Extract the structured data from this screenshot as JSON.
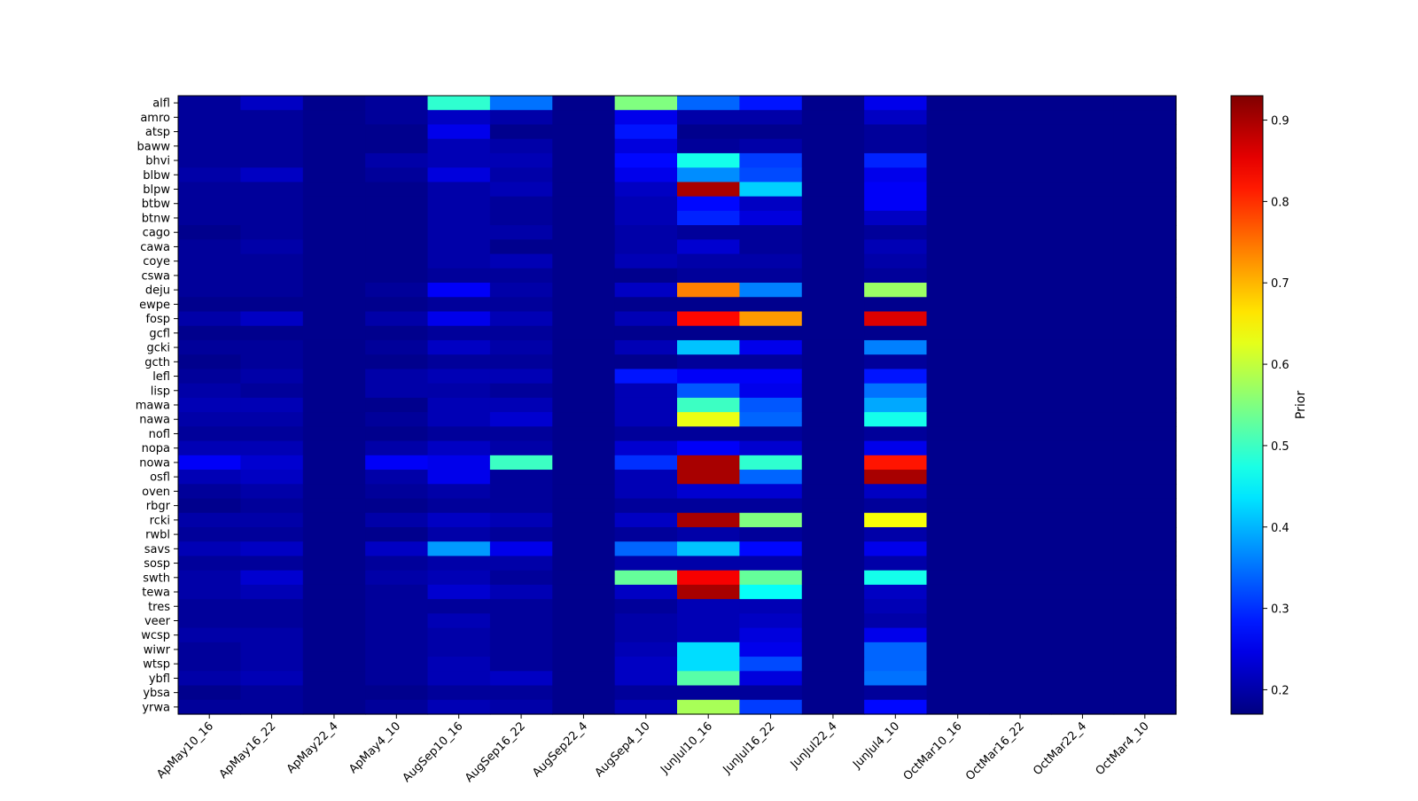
{
  "chart_data": {
    "type": "heatmap",
    "title": "",
    "xlabel": "",
    "ylabel": "",
    "colorbar_label": "Prior",
    "colormap": "jet",
    "vmin": 0.17,
    "vmax": 0.93,
    "colorbar_ticks": [
      "0.2",
      "0.3",
      "0.4",
      "0.5",
      "0.6",
      "0.7",
      "0.8",
      "0.9"
    ],
    "x_categories": [
      "ApMay10_16",
      "ApMay16_22",
      "ApMay22_4",
      "ApMay4_10",
      "AugSep10_16",
      "AugSep16_22",
      "AugSep22_4",
      "AugSep4_10",
      "JunJul10_16",
      "JunJul16_22",
      "JunJul22_4",
      "JunJul4_10",
      "OctMar10_16",
      "OctMar16_22",
      "OctMar22_4",
      "OctMar4_10"
    ],
    "y_categories": [
      "alfl",
      "amro",
      "atsp",
      "baww",
      "bhvi",
      "blbw",
      "blpw",
      "btbw",
      "btnw",
      "cago",
      "cawa",
      "coye",
      "cswa",
      "deju",
      "ewpe",
      "fosp",
      "gcfl",
      "gcki",
      "gcth",
      "lefl",
      "lisp",
      "mawa",
      "nawa",
      "nofl",
      "nopa",
      "nowa",
      "osfl",
      "oven",
      "rbgr",
      "rcki",
      "rwbl",
      "savs",
      "sosp",
      "swth",
      "tewa",
      "tres",
      "veer",
      "wcsp",
      "wiwr",
      "wtsp",
      "ybfl",
      "ybsa",
      "yrwa"
    ],
    "values": [
      [
        0.19,
        0.22,
        0.18,
        0.19,
        0.49,
        0.35,
        0.18,
        0.55,
        0.34,
        0.28,
        0.18,
        0.25,
        0.18,
        0.18,
        0.18,
        0.18
      ],
      [
        0.19,
        0.19,
        0.18,
        0.19,
        0.22,
        0.2,
        0.18,
        0.25,
        0.2,
        0.2,
        0.18,
        0.22,
        0.18,
        0.18,
        0.18,
        0.18
      ],
      [
        0.19,
        0.19,
        0.18,
        0.18,
        0.25,
        0.18,
        0.18,
        0.28,
        0.18,
        0.18,
        0.18,
        0.19,
        0.18,
        0.18,
        0.18,
        0.18
      ],
      [
        0.19,
        0.19,
        0.18,
        0.18,
        0.21,
        0.2,
        0.18,
        0.24,
        0.19,
        0.2,
        0.18,
        0.19,
        0.18,
        0.18,
        0.18,
        0.18
      ],
      [
        0.19,
        0.19,
        0.18,
        0.2,
        0.21,
        0.21,
        0.18,
        0.27,
        0.47,
        0.31,
        0.18,
        0.29,
        0.18,
        0.18,
        0.18,
        0.18
      ],
      [
        0.2,
        0.22,
        0.18,
        0.19,
        0.24,
        0.2,
        0.18,
        0.25,
        0.37,
        0.32,
        0.18,
        0.25,
        0.18,
        0.18,
        0.18,
        0.18
      ],
      [
        0.19,
        0.19,
        0.18,
        0.18,
        0.2,
        0.21,
        0.18,
        0.22,
        0.9,
        0.42,
        0.18,
        0.26,
        0.18,
        0.18,
        0.18,
        0.18
      ],
      [
        0.19,
        0.19,
        0.18,
        0.18,
        0.2,
        0.19,
        0.18,
        0.21,
        0.27,
        0.22,
        0.18,
        0.26,
        0.18,
        0.18,
        0.18,
        0.18
      ],
      [
        0.19,
        0.19,
        0.18,
        0.18,
        0.2,
        0.19,
        0.18,
        0.21,
        0.29,
        0.24,
        0.18,
        0.22,
        0.18,
        0.18,
        0.18,
        0.18
      ],
      [
        0.18,
        0.19,
        0.18,
        0.18,
        0.2,
        0.2,
        0.18,
        0.2,
        0.19,
        0.19,
        0.18,
        0.19,
        0.18,
        0.18,
        0.18,
        0.18
      ],
      [
        0.19,
        0.2,
        0.18,
        0.18,
        0.2,
        0.18,
        0.18,
        0.2,
        0.23,
        0.19,
        0.18,
        0.21,
        0.18,
        0.18,
        0.18,
        0.18
      ],
      [
        0.19,
        0.19,
        0.18,
        0.18,
        0.2,
        0.21,
        0.18,
        0.21,
        0.2,
        0.2,
        0.18,
        0.2,
        0.18,
        0.18,
        0.18,
        0.18
      ],
      [
        0.19,
        0.19,
        0.18,
        0.18,
        0.19,
        0.19,
        0.18,
        0.18,
        0.19,
        0.19,
        0.18,
        0.19,
        0.18,
        0.18,
        0.18,
        0.18
      ],
      [
        0.19,
        0.19,
        0.18,
        0.19,
        0.26,
        0.2,
        0.18,
        0.22,
        0.74,
        0.36,
        0.18,
        0.57,
        0.18,
        0.18,
        0.18,
        0.18
      ],
      [
        0.18,
        0.18,
        0.18,
        0.18,
        0.19,
        0.19,
        0.18,
        0.18,
        0.18,
        0.18,
        0.18,
        0.18,
        0.18,
        0.18,
        0.18,
        0.18
      ],
      [
        0.2,
        0.22,
        0.18,
        0.2,
        0.25,
        0.21,
        0.18,
        0.21,
        0.83,
        0.72,
        0.18,
        0.86,
        0.18,
        0.18,
        0.18,
        0.18
      ],
      [
        0.18,
        0.18,
        0.18,
        0.18,
        0.19,
        0.19,
        0.18,
        0.18,
        0.18,
        0.18,
        0.18,
        0.18,
        0.18,
        0.18,
        0.18,
        0.18
      ],
      [
        0.19,
        0.19,
        0.18,
        0.19,
        0.22,
        0.2,
        0.18,
        0.21,
        0.41,
        0.25,
        0.18,
        0.36,
        0.18,
        0.18,
        0.18,
        0.18
      ],
      [
        0.18,
        0.19,
        0.18,
        0.18,
        0.19,
        0.19,
        0.18,
        0.18,
        0.19,
        0.19,
        0.18,
        0.19,
        0.18,
        0.18,
        0.18,
        0.18
      ],
      [
        0.19,
        0.2,
        0.18,
        0.2,
        0.21,
        0.21,
        0.18,
        0.28,
        0.26,
        0.26,
        0.18,
        0.28,
        0.18,
        0.18,
        0.18,
        0.18
      ],
      [
        0.2,
        0.19,
        0.18,
        0.2,
        0.2,
        0.19,
        0.18,
        0.21,
        0.33,
        0.25,
        0.18,
        0.35,
        0.18,
        0.18,
        0.18,
        0.18
      ],
      [
        0.21,
        0.21,
        0.18,
        0.18,
        0.21,
        0.21,
        0.18,
        0.21,
        0.5,
        0.33,
        0.18,
        0.39,
        0.18,
        0.18,
        0.18,
        0.18
      ],
      [
        0.2,
        0.2,
        0.18,
        0.19,
        0.21,
        0.23,
        0.18,
        0.21,
        0.63,
        0.34,
        0.18,
        0.47,
        0.18,
        0.18,
        0.18,
        0.18
      ],
      [
        0.19,
        0.19,
        0.18,
        0.18,
        0.19,
        0.19,
        0.18,
        0.19,
        0.19,
        0.19,
        0.18,
        0.19,
        0.18,
        0.18,
        0.18,
        0.18
      ],
      [
        0.21,
        0.21,
        0.18,
        0.2,
        0.22,
        0.2,
        0.18,
        0.23,
        0.26,
        0.23,
        0.18,
        0.25,
        0.18,
        0.18,
        0.18,
        0.18
      ],
      [
        0.26,
        0.23,
        0.18,
        0.26,
        0.25,
        0.5,
        0.18,
        0.3,
        0.9,
        0.49,
        0.18,
        0.82,
        0.18,
        0.18,
        0.18,
        0.18
      ],
      [
        0.21,
        0.22,
        0.18,
        0.2,
        0.25,
        0.19,
        0.18,
        0.21,
        0.9,
        0.34,
        0.18,
        0.9,
        0.18,
        0.18,
        0.18,
        0.18
      ],
      [
        0.19,
        0.2,
        0.18,
        0.19,
        0.2,
        0.19,
        0.18,
        0.21,
        0.23,
        0.23,
        0.18,
        0.22,
        0.18,
        0.18,
        0.18,
        0.18
      ],
      [
        0.18,
        0.19,
        0.18,
        0.18,
        0.19,
        0.19,
        0.18,
        0.19,
        0.19,
        0.19,
        0.18,
        0.19,
        0.18,
        0.18,
        0.18,
        0.18
      ],
      [
        0.2,
        0.2,
        0.18,
        0.2,
        0.22,
        0.21,
        0.18,
        0.22,
        0.9,
        0.55,
        0.18,
        0.64,
        0.18,
        0.18,
        0.18,
        0.18
      ],
      [
        0.19,
        0.19,
        0.18,
        0.18,
        0.2,
        0.19,
        0.18,
        0.19,
        0.2,
        0.19,
        0.18,
        0.2,
        0.18,
        0.18,
        0.18,
        0.18
      ],
      [
        0.21,
        0.22,
        0.18,
        0.22,
        0.38,
        0.25,
        0.18,
        0.34,
        0.41,
        0.27,
        0.18,
        0.25,
        0.18,
        0.18,
        0.18,
        0.18
      ],
      [
        0.19,
        0.19,
        0.18,
        0.19,
        0.2,
        0.2,
        0.18,
        0.2,
        0.2,
        0.2,
        0.18,
        0.2,
        0.18,
        0.18,
        0.18,
        0.18
      ],
      [
        0.2,
        0.23,
        0.18,
        0.2,
        0.21,
        0.19,
        0.18,
        0.53,
        0.84,
        0.53,
        0.18,
        0.47,
        0.18,
        0.18,
        0.18,
        0.18
      ],
      [
        0.2,
        0.21,
        0.18,
        0.19,
        0.23,
        0.21,
        0.18,
        0.22,
        0.9,
        0.46,
        0.18,
        0.22,
        0.18,
        0.18,
        0.18,
        0.18
      ],
      [
        0.19,
        0.19,
        0.18,
        0.19,
        0.19,
        0.19,
        0.18,
        0.19,
        0.21,
        0.21,
        0.18,
        0.21,
        0.18,
        0.18,
        0.18,
        0.18
      ],
      [
        0.19,
        0.19,
        0.18,
        0.19,
        0.21,
        0.19,
        0.18,
        0.2,
        0.21,
        0.22,
        0.18,
        0.2,
        0.18,
        0.18,
        0.18,
        0.18
      ],
      [
        0.2,
        0.2,
        0.18,
        0.19,
        0.2,
        0.19,
        0.18,
        0.2,
        0.21,
        0.24,
        0.18,
        0.25,
        0.18,
        0.18,
        0.18,
        0.18
      ],
      [
        0.19,
        0.2,
        0.18,
        0.19,
        0.2,
        0.19,
        0.18,
        0.21,
        0.43,
        0.25,
        0.18,
        0.34,
        0.18,
        0.18,
        0.18,
        0.18
      ],
      [
        0.19,
        0.2,
        0.18,
        0.19,
        0.21,
        0.19,
        0.18,
        0.22,
        0.43,
        0.32,
        0.18,
        0.34,
        0.18,
        0.18,
        0.18,
        0.18
      ],
      [
        0.2,
        0.21,
        0.18,
        0.19,
        0.21,
        0.22,
        0.18,
        0.22,
        0.52,
        0.24,
        0.18,
        0.35,
        0.18,
        0.18,
        0.18,
        0.18
      ],
      [
        0.18,
        0.19,
        0.18,
        0.18,
        0.19,
        0.19,
        0.18,
        0.19,
        0.19,
        0.19,
        0.18,
        0.19,
        0.18,
        0.18,
        0.18,
        0.18
      ],
      [
        0.19,
        0.19,
        0.18,
        0.19,
        0.21,
        0.2,
        0.18,
        0.21,
        0.58,
        0.31,
        0.18,
        0.27,
        0.18,
        0.18,
        0.18,
        0.18
      ]
    ],
    "grid": false,
    "legend": "colorbar-right"
  }
}
